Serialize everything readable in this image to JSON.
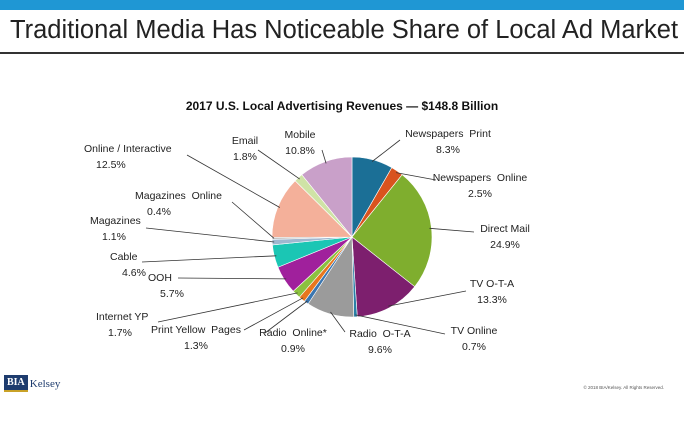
{
  "slide": {
    "title": "Traditional Media Has Noticeable Share of Local Ad Market",
    "logo_mark": "BIA",
    "logo_text": "Kelsey",
    "copyright": "© 2018 BIA/Kelsey. All Rights Reserved."
  },
  "colors": {
    "accent_bar": "#1f97d4",
    "pie_edge": "#ffffff"
  },
  "chart_data": {
    "type": "pie",
    "title": "2017 U.S. Local Advertising Revenues — $148.8 Billion",
    "slices": [
      {
        "name": "Newspapers  Print",
        "label": "8.3%",
        "value": 8.3,
        "color": "#1b6f96"
      },
      {
        "name": "Newspapers  Online",
        "label": "2.5%",
        "value": 2.5,
        "color": "#d9531e"
      },
      {
        "name": "Direct Mail",
        "label": "24.9%",
        "value": 24.9,
        "color": "#7fae2e"
      },
      {
        "name": "TV O-T-A",
        "label": "13.3%",
        "value": 13.3,
        "color": "#7d1f6e"
      },
      {
        "name": "TV Online",
        "label": "0.7%",
        "value": 0.7,
        "color": "#2a7fa6"
      },
      {
        "name": "Radio  O-T-A",
        "label": "9.6%",
        "value": 9.6,
        "color": "#9b9b9b"
      },
      {
        "name": "Radio  Online*",
        "label": "0.9%",
        "value": 0.9,
        "color": "#3b76b0"
      },
      {
        "name": "Print Yellow  Pages",
        "label": "1.3%",
        "value": 1.3,
        "color": "#e8761e"
      },
      {
        "name": "Internet YP",
        "label": "1.7%",
        "value": 1.7,
        "color": "#8cc13f"
      },
      {
        "name": "OOH",
        "label": "5.7%",
        "value": 5.7,
        "color": "#a0209c"
      },
      {
        "name": "Cable",
        "label": "4.6%",
        "value": 4.6,
        "color": "#1bc6b4"
      },
      {
        "name": "Magazines",
        "label": "1.1%",
        "value": 1.1,
        "color": "#9fb8d0"
      },
      {
        "name": "Magazines  Online",
        "label": "0.4%",
        "value": 0.4,
        "color": "#c4c4c4"
      },
      {
        "name": "Online / Interactive",
        "label": "12.5%",
        "value": 12.5,
        "color": "#f4b09a"
      },
      {
        "name": "Email",
        "label": "1.8%",
        "value": 1.8,
        "color": "#cfe3a6"
      },
      {
        "name": "Mobile",
        "label": "10.8%",
        "value": 10.8,
        "color": "#c9a0c9"
      }
    ]
  }
}
